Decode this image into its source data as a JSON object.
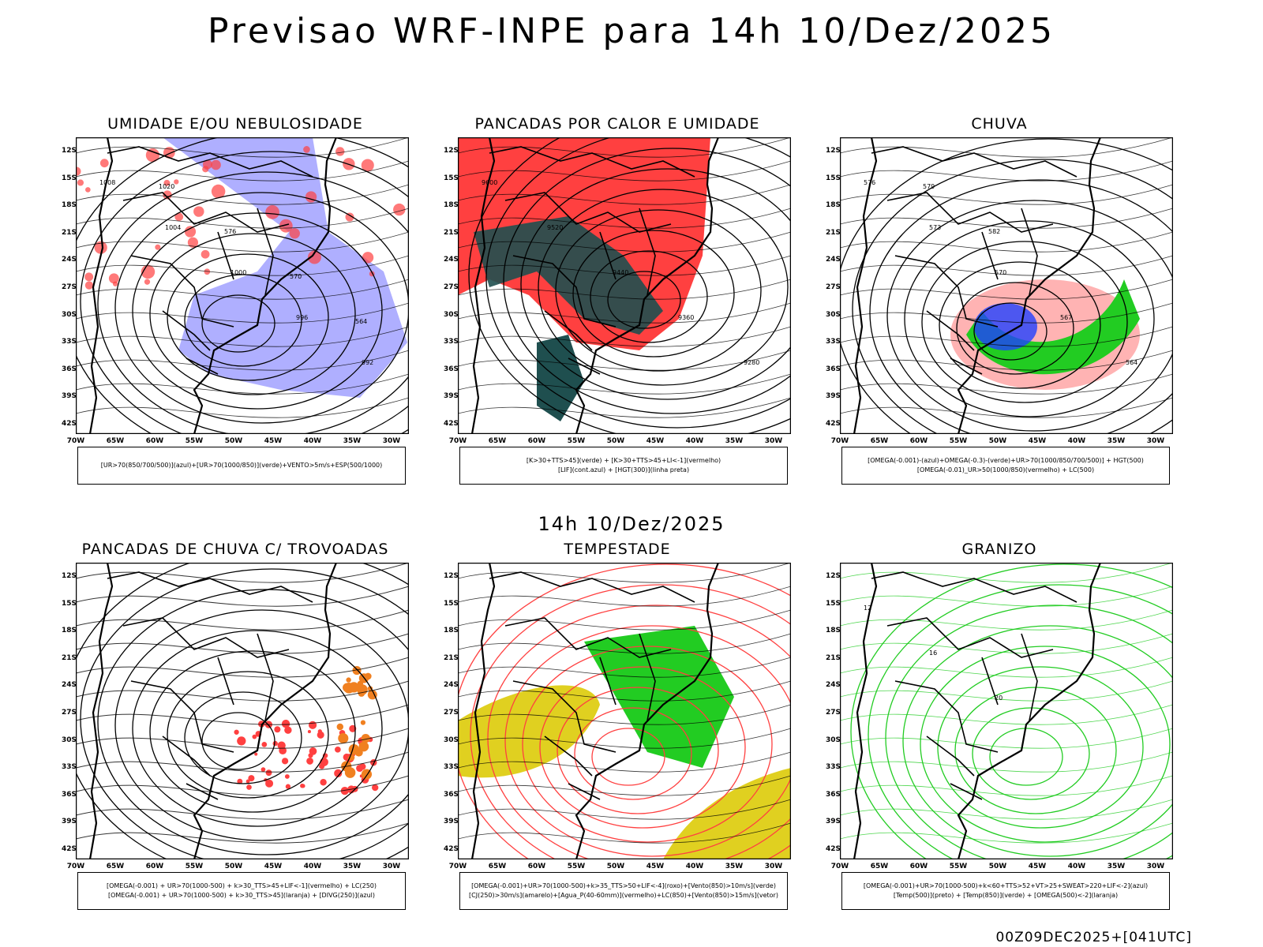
{
  "title": "Previsao WRF-INPE  para 14h 10/Dez/2025",
  "mid_label": "14h 10/Dez/2025",
  "footer": "00Z09DEC2025+[041UTC]",
  "lat_ticks": [
    "12S",
    "15S",
    "18S",
    "21S",
    "24S",
    "27S",
    "30S",
    "33S",
    "36S",
    "39S",
    "42S"
  ],
  "lon_ticks": [
    "70W",
    "65W",
    "60W",
    "55W",
    "50W",
    "45W",
    "40W",
    "35W",
    "30W"
  ],
  "colors": {
    "blue": "#a6a6ff",
    "green": "#22cc22",
    "red": "#ff4040",
    "darkgreen": "#1f4f4f",
    "yellow": "#e0d020",
    "orange": "#f08020"
  },
  "panels": [
    {
      "title": "UMIDADE E/OU NEBULOSIDADE",
      "legend": [
        "[UR>70(850/700/500)](azul)+[UR>70(1000/850)](verde)+VENTO>5m/s+ESP(500/1000)"
      ],
      "labels": [
        "1008",
        "1004",
        "1000",
        "996",
        "992",
        "1020",
        "576",
        "570",
        "564"
      ]
    },
    {
      "title": "PANCADAS POR CALOR E UMIDADE",
      "legend": [
        "[K>30+TTS>45](verde) + [K>30+TTS>45+LI<-1](vermelho)",
        "[LIF](cont.azul) + [HGT(300)](linha preta)"
      ],
      "labels": [
        "9600",
        "9520",
        "9440",
        "9360",
        "9280"
      ]
    },
    {
      "title": "CHUVA",
      "legend": [
        "[OMEGA(-0.001)-(azul)+OMEGA(-0.3)-(verde)+UR>70(1000/850/700/500)] + HGT(500)",
        "[OMEGA(-0.01)_UR>50(1000/850)(vermelho) + LC(500)"
      ],
      "labels": [
        "576",
        "573",
        "570",
        "567",
        "564",
        "579",
        "582"
      ]
    },
    {
      "title": "PANCADAS DE CHUVA C/ TROVOADAS",
      "legend": [
        "[OMEGA(-0.001) + UR>70(1000-500) + k>30_TTS>45+LIF<-1](vermelho) + LC(250)",
        "[OMEGA(-0.001) + UR>70(1000-500) + k>30_TTS>45](laranja) + [DIVG(250)](azul)"
      ],
      "labels": []
    },
    {
      "title": "TEMPESTADE",
      "legend": [
        "[OMEGA(-0.001)+UR>70(1000-500)+k>35_TTS>50+LIF<-4](roxo)+[Vento(850)>10m/s](verde)",
        "[CJ(250)>30m/s](amarelo)+[Agua_P(40-60mm)](vermelho)+LC(850)+[Vento(850)>15m/s](vetor)"
      ],
      "labels": []
    },
    {
      "title": "GRANIZO",
      "legend": [
        "[OMEGA(-0.001)+UR>70(1000-500)+k<60+TTS>52+VT>25+SWEAT>220+LIF<-2](azul)",
        "[Temp(500)](preto) + [Temp(850)](verde) + [OMEGA(500)<-2](laranja)"
      ],
      "labels": [
        "12",
        "16",
        "20"
      ]
    }
  ]
}
